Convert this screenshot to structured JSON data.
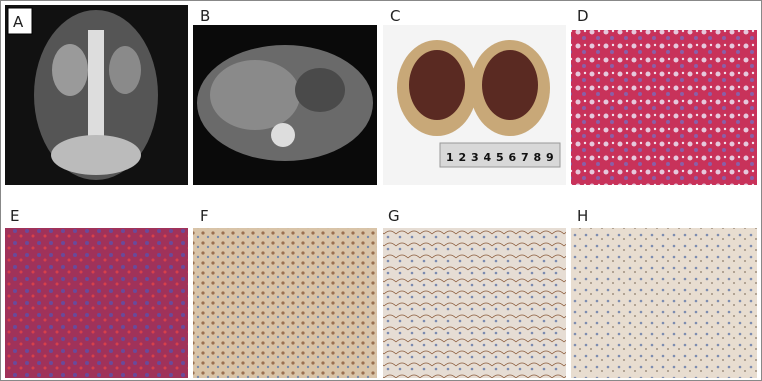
{
  "panels": [
    {
      "label": "A"
    },
    {
      "label": "B"
    },
    {
      "label": "C",
      "ruler": [
        "1",
        "2",
        "3",
        "4",
        "5",
        "6",
        "7",
        "8",
        "9"
      ]
    },
    {
      "label": "D"
    },
    {
      "label": "E"
    },
    {
      "label": "F"
    },
    {
      "label": "G"
    },
    {
      "label": "H"
    }
  ]
}
